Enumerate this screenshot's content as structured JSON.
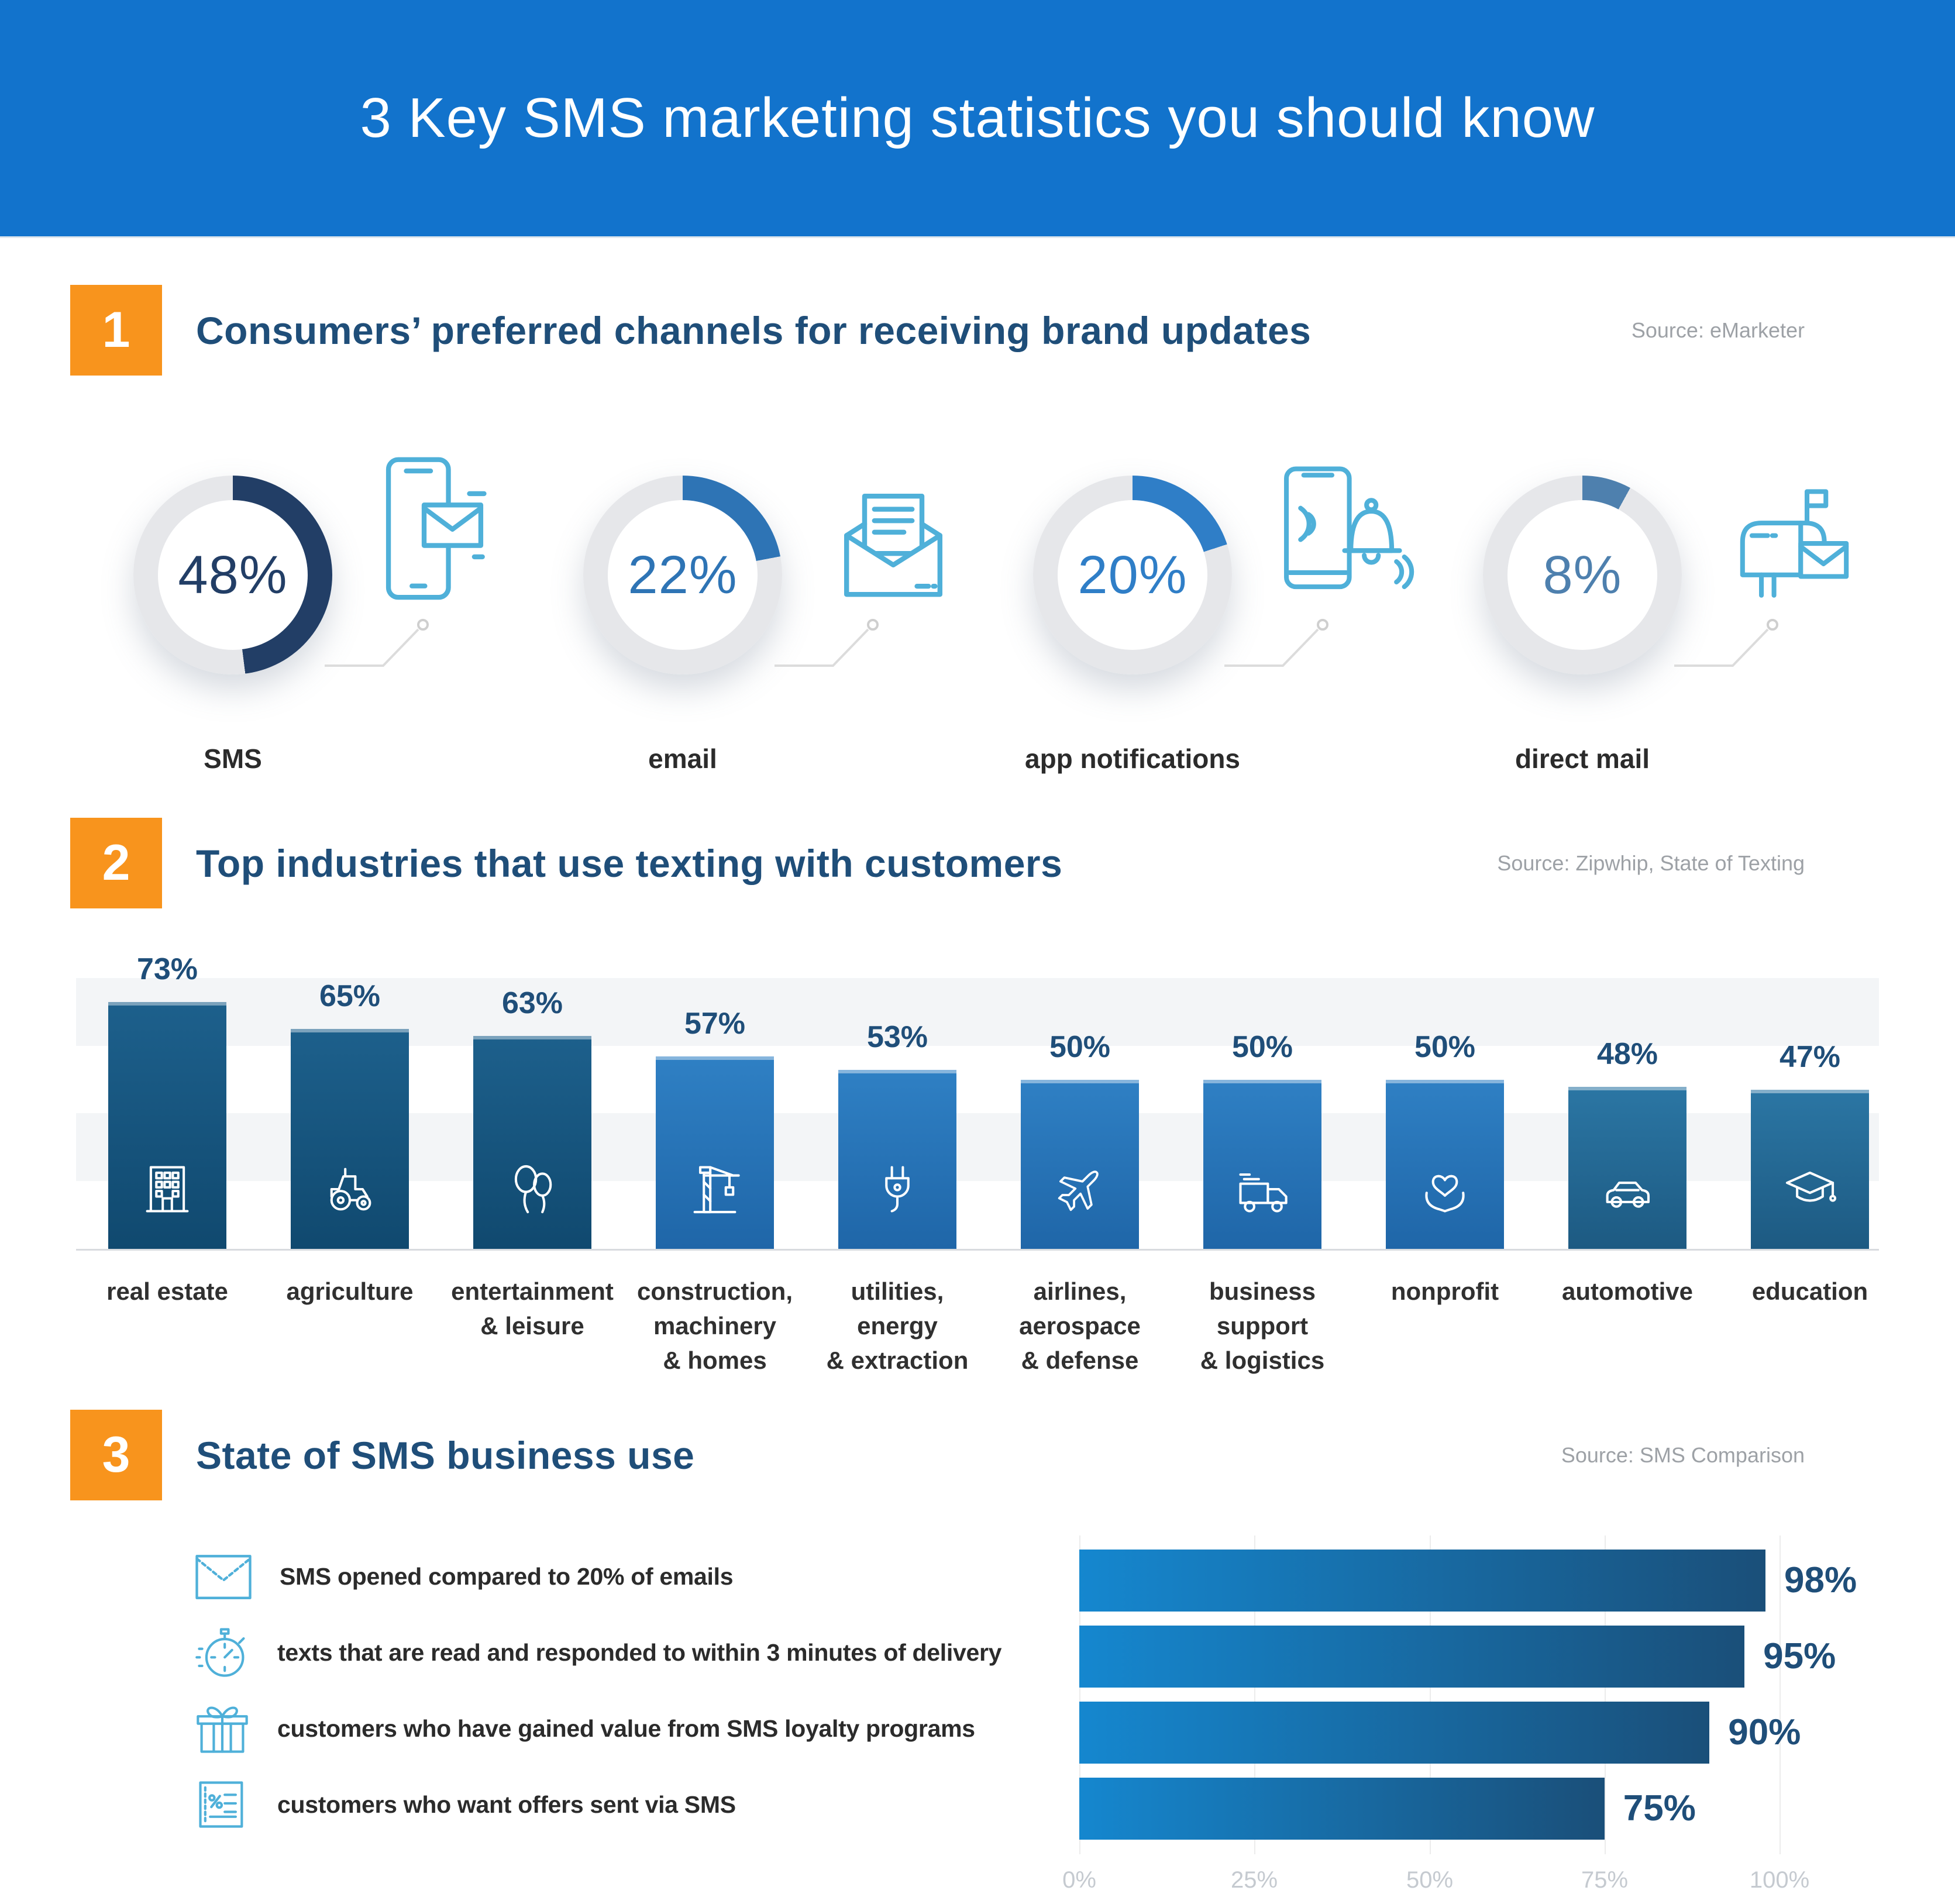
{
  "header": {
    "title": "3 Key SMS marketing statistics you should know"
  },
  "colors": {
    "header_blue": "#1273cc",
    "accent_orange": "#f8941d",
    "title_blue": "#1f4e79",
    "donut_track": "#e6e7ea",
    "icon_light_blue": "#4fb0d9"
  },
  "s1": {
    "number": "1",
    "title": "Consumers’ preferred channels for receiving brand updates",
    "source": "Source: eMarketer",
    "donuts": [
      {
        "value": 48,
        "value_label": "48%",
        "label": "SMS",
        "arc_color": "#223e66",
        "icon": "phone-sms-icon"
      },
      {
        "value": 22,
        "value_label": "22%",
        "label": "email",
        "arc_color": "#2e74b5",
        "icon": "open-envelope-icon"
      },
      {
        "value": 20,
        "value_label": "20%",
        "label": "app notifications",
        "arc_color": "#2f7ec7",
        "icon": "phone-bell-icon"
      },
      {
        "value": 8,
        "value_label": "8%",
        "label": "direct mail",
        "arc_color": "#4e80ae",
        "icon": "mailbox-icon"
      }
    ]
  },
  "s2": {
    "number": "2",
    "title": "Top industries that use texting with customers",
    "source": "Source: Zipwhip, State of Texting",
    "bars": [
      {
        "value": 73,
        "value_label": "73%",
        "label_lines": [
          "real estate"
        ],
        "color_top": "#1d608c",
        "color_bottom": "#10496f",
        "icon": "building-icon"
      },
      {
        "value": 65,
        "value_label": "65%",
        "label_lines": [
          "agriculture"
        ],
        "color_top": "#1d608c",
        "color_bottom": "#10496f",
        "icon": "tractor-icon"
      },
      {
        "value": 63,
        "value_label": "63%",
        "label_lines": [
          "entertainment",
          "& leisure"
        ],
        "color_top": "#1d608c",
        "color_bottom": "#10496f",
        "icon": "balloons-icon"
      },
      {
        "value": 57,
        "value_label": "57%",
        "label_lines": [
          "construction,",
          "machinery",
          "& homes"
        ],
        "color_top": "#2f80c4",
        "color_bottom": "#1f66a8",
        "icon": "crane-icon"
      },
      {
        "value": 53,
        "value_label": "53%",
        "label_lines": [
          "utilities,",
          "energy",
          "& extraction"
        ],
        "color_top": "#2f80c4",
        "color_bottom": "#1f66a8",
        "icon": "plug-icon"
      },
      {
        "value": 50,
        "value_label": "50%",
        "label_lines": [
          "airlines,",
          "aerospace",
          "& defense"
        ],
        "color_top": "#2f80c4",
        "color_bottom": "#1f66a8",
        "icon": "plane-icon"
      },
      {
        "value": 50,
        "value_label": "50%",
        "label_lines": [
          "business",
          "support",
          "& logistics"
        ],
        "color_top": "#2f80c4",
        "color_bottom": "#1f66a8",
        "icon": "truck-icon"
      },
      {
        "value": 50,
        "value_label": "50%",
        "label_lines": [
          "nonprofit"
        ],
        "color_top": "#2f80c4",
        "color_bottom": "#1f66a8",
        "icon": "hands-heart-icon"
      },
      {
        "value": 48,
        "value_label": "48%",
        "label_lines": [
          "automotive"
        ],
        "color_top": "#2b76a4",
        "color_bottom": "#1d5a82",
        "icon": "car-icon"
      },
      {
        "value": 47,
        "value_label": "47%",
        "label_lines": [
          "education"
        ],
        "color_top": "#2b76a4",
        "color_bottom": "#1d5a82",
        "icon": "graduation-cap-icon"
      }
    ]
  },
  "s3": {
    "number": "3",
    "title": "State of SMS business use",
    "source": "Source: SMS Comparison",
    "bar_color_left": "#1587cf",
    "bar_color_right": "#1a4f79",
    "rows": [
      {
        "value": 98,
        "value_label": "98%",
        "text": "SMS opened compared to 20% of emails",
        "icon": "envelope-icon"
      },
      {
        "value": 95,
        "value_label": "95%",
        "text": "texts that are read and responded to within 3 minutes of delivery",
        "icon": "stopwatch-icon"
      },
      {
        "value": 90,
        "value_label": "90%",
        "text": "customers who have gained value from SMS loyalty programs",
        "icon": "gift-icon"
      },
      {
        "value": 75,
        "value_label": "75%",
        "text": "customers who want offers sent via SMS",
        "icon": "coupon-icon"
      }
    ],
    "axis_ticks": [
      "0%",
      "25%",
      "50%",
      "75%",
      "100%"
    ]
  },
  "chart_data": [
    {
      "type": "pie",
      "title": "Consumers’ preferred channels for receiving brand updates",
      "categories": [
        "SMS",
        "email",
        "app notifications",
        "direct mail"
      ],
      "values": [
        48,
        22,
        20,
        8
      ],
      "unit": "%",
      "source": "Source: eMarketer",
      "style": "donut gauges, arc starts at 12 o'clock clockwise"
    },
    {
      "type": "bar",
      "title": "Top industries that use texting with customers",
      "categories": [
        "real estate",
        "agriculture",
        "entertainment & leisure",
        "construction, machinery & homes",
        "utilities, energy & extraction",
        "airlines, aerospace & defense",
        "business support & logistics",
        "nonprofit",
        "automotive",
        "education"
      ],
      "values": [
        73,
        65,
        63,
        57,
        53,
        50,
        50,
        50,
        48,
        47
      ],
      "unit": "%",
      "ylim": [
        0,
        100
      ],
      "grid": "light horizontal bands at 20-40% and 60-80%",
      "source": "Source: Zipwhip, State of Texting"
    },
    {
      "type": "bar",
      "orientation": "horizontal",
      "title": "State of SMS business use",
      "categories": [
        "SMS opened compared to 20% of emails",
        "texts that are read and responded to within 3 minutes of delivery",
        "customers who have gained value from SMS loyalty programs",
        "customers who want offers sent via SMS"
      ],
      "values": [
        98,
        95,
        90,
        75
      ],
      "unit": "%",
      "xlim": [
        0,
        100
      ],
      "x_ticks": [
        "0%",
        "25%",
        "50%",
        "75%",
        "100%"
      ],
      "grid": "vertical gridlines at ticks",
      "source": "Source: SMS Comparison"
    }
  ]
}
